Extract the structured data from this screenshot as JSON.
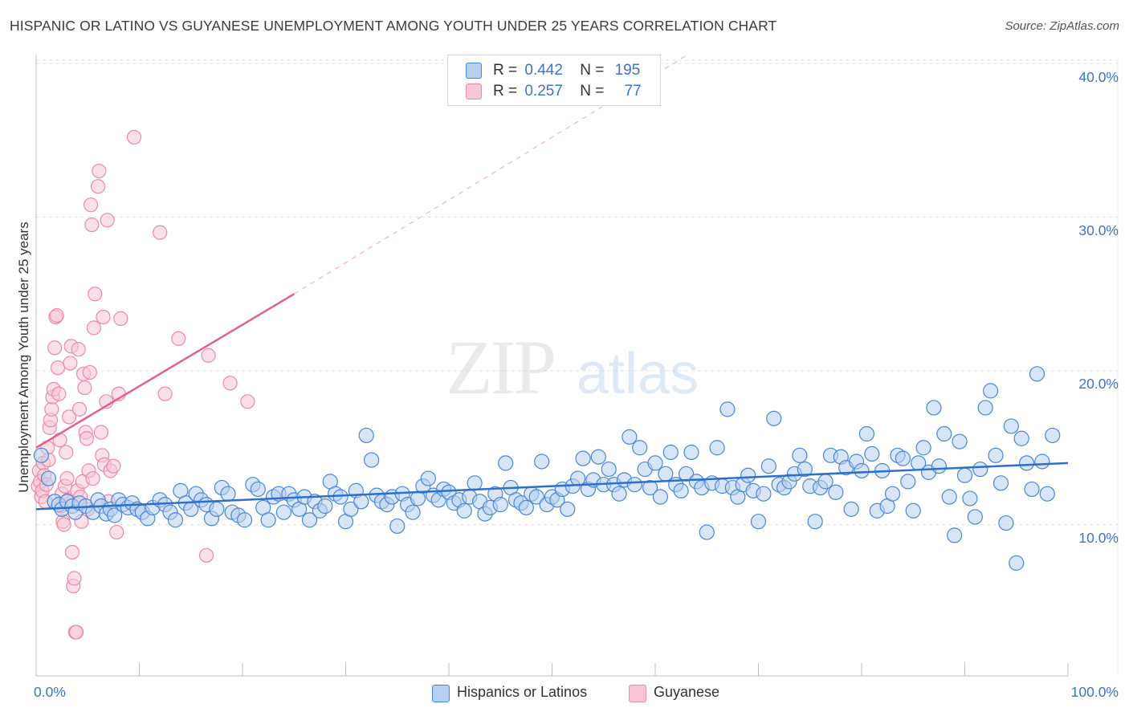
{
  "title": "HISPANIC OR LATINO VS GUYANESE UNEMPLOYMENT AMONG YOUTH UNDER 25 YEARS CORRELATION CHART",
  "source": "Source: ZipAtlas.com",
  "watermark": {
    "zip": "ZIP",
    "atlas": "atlas"
  },
  "legend": {
    "r_label": "R =",
    "n_label": "N =",
    "series1": {
      "r": "0.442",
      "n": "195"
    },
    "series2": {
      "r": "0.257",
      "n": "77"
    }
  },
  "colors": {
    "blue_fill": "#b8d0f0",
    "blue_stroke": "#4a86d6",
    "blue_line": "#2e6fcc",
    "pink_fill": "#f8c6d6",
    "pink_stroke": "#e88aaa",
    "pink_line": "#e0628e"
  },
  "chart_data": {
    "type": "scatter",
    "title": "HISPANIC OR LATINO VS GUYANESE UNEMPLOYMENT AMONG YOUTH UNDER 25 YEARS CORRELATION CHART",
    "xlabel": "",
    "ylabel": "Unemployment Among Youth under 25 years",
    "xlim": [
      0,
      100
    ],
    "ylim": [
      0,
      41.5
    ],
    "x_tick_labels": [
      "0.0%",
      "100.0%"
    ],
    "y_ticks": [
      10,
      20,
      30,
      40
    ],
    "y_tick_labels": [
      "10.0%",
      "20.0%",
      "30.0%",
      "40.0%"
    ],
    "grid": true,
    "legend_position": "top-center",
    "series": [
      {
        "name": "Hispanics or Latinos",
        "color": "#4a86d6",
        "trend": {
          "x": [
            0,
            100
          ],
          "y": [
            11.0,
            14.0
          ]
        },
        "points": [
          [
            0.5,
            14.5
          ],
          [
            1.2,
            13.0
          ],
          [
            1.8,
            11.5
          ],
          [
            2.2,
            11.3
          ],
          [
            2.5,
            11.0
          ],
          [
            3.0,
            11.5
          ],
          [
            3.5,
            11.2
          ],
          [
            3.8,
            10.8
          ],
          [
            4.2,
            11.4
          ],
          [
            4.8,
            11.2
          ],
          [
            5.5,
            10.8
          ],
          [
            6.0,
            11.6
          ],
          [
            6.3,
            11.2
          ],
          [
            6.8,
            10.7
          ],
          [
            7.2,
            11.0
          ],
          [
            7.6,
            10.6
          ],
          [
            8.0,
            11.6
          ],
          [
            8.4,
            11.3
          ],
          [
            8.9,
            11.1
          ],
          [
            9.3,
            11.4
          ],
          [
            9.8,
            11.0
          ],
          [
            10.3,
            10.8
          ],
          [
            10.8,
            10.4
          ],
          [
            11.3,
            11.1
          ],
          [
            12.0,
            11.6
          ],
          [
            12.5,
            11.3
          ],
          [
            13.0,
            10.8
          ],
          [
            13.5,
            10.3
          ],
          [
            14.0,
            12.2
          ],
          [
            14.5,
            11.4
          ],
          [
            15.0,
            11.0
          ],
          [
            15.5,
            12.0
          ],
          [
            16.0,
            11.6
          ],
          [
            16.5,
            11.3
          ],
          [
            17.0,
            10.4
          ],
          [
            17.5,
            11.0
          ],
          [
            18.0,
            12.4
          ],
          [
            18.6,
            12.0
          ],
          [
            19.0,
            10.8
          ],
          [
            19.6,
            10.6
          ],
          [
            20.2,
            10.3
          ],
          [
            21.0,
            12.6
          ],
          [
            21.5,
            12.3
          ],
          [
            22.0,
            11.1
          ],
          [
            22.5,
            10.3
          ],
          [
            23.0,
            11.8
          ],
          [
            23.5,
            12.0
          ],
          [
            24.0,
            10.8
          ],
          [
            24.5,
            12.0
          ],
          [
            25.0,
            11.6
          ],
          [
            25.5,
            11.0
          ],
          [
            26.0,
            11.8
          ],
          [
            26.5,
            10.3
          ],
          [
            27.0,
            11.5
          ],
          [
            27.5,
            10.9
          ],
          [
            28.0,
            11.2
          ],
          [
            28.5,
            12.8
          ],
          [
            29.0,
            12.0
          ],
          [
            29.5,
            11.8
          ],
          [
            30.0,
            10.2
          ],
          [
            30.5,
            11.0
          ],
          [
            31.0,
            12.2
          ],
          [
            31.5,
            11.5
          ],
          [
            32.0,
            15.8
          ],
          [
            32.5,
            14.2
          ],
          [
            33.0,
            11.9
          ],
          [
            33.5,
            11.5
          ],
          [
            34.0,
            11.3
          ],
          [
            34.5,
            11.8
          ],
          [
            35.0,
            9.9
          ],
          [
            35.5,
            12.0
          ],
          [
            36.0,
            11.3
          ],
          [
            36.5,
            10.8
          ],
          [
            37.0,
            11.7
          ],
          [
            37.5,
            12.5
          ],
          [
            38.0,
            13.0
          ],
          [
            38.5,
            11.9
          ],
          [
            39.0,
            11.6
          ],
          [
            39.5,
            12.3
          ],
          [
            40.0,
            12.1
          ],
          [
            40.5,
            11.4
          ],
          [
            41.0,
            11.6
          ],
          [
            41.5,
            10.9
          ],
          [
            42.0,
            11.8
          ],
          [
            42.5,
            12.7
          ],
          [
            43.0,
            11.5
          ],
          [
            43.5,
            10.7
          ],
          [
            44.0,
            11.1
          ],
          [
            44.5,
            12.0
          ],
          [
            45.0,
            11.3
          ],
          [
            45.5,
            14.0
          ],
          [
            46.0,
            12.4
          ],
          [
            46.5,
            11.6
          ],
          [
            47.0,
            11.4
          ],
          [
            47.5,
            11.1
          ],
          [
            48.0,
            12.0
          ],
          [
            48.5,
            11.8
          ],
          [
            49.0,
            14.1
          ],
          [
            49.5,
            11.3
          ],
          [
            50.0,
            11.8
          ],
          [
            50.5,
            11.6
          ],
          [
            51.0,
            12.3
          ],
          [
            51.5,
            11.0
          ],
          [
            52.0,
            12.5
          ],
          [
            52.5,
            13.0
          ],
          [
            53.0,
            14.3
          ],
          [
            53.5,
            12.3
          ],
          [
            54.0,
            12.9
          ],
          [
            54.5,
            14.4
          ],
          [
            55.0,
            12.6
          ],
          [
            55.5,
            13.6
          ],
          [
            56.0,
            12.6
          ],
          [
            56.5,
            12.0
          ],
          [
            57.0,
            12.9
          ],
          [
            57.5,
            15.7
          ],
          [
            58.0,
            12.6
          ],
          [
            58.5,
            15.0
          ],
          [
            59.0,
            13.6
          ],
          [
            59.5,
            12.4
          ],
          [
            60.0,
            14.0
          ],
          [
            60.5,
            11.8
          ],
          [
            61.0,
            13.3
          ],
          [
            61.5,
            14.7
          ],
          [
            62.0,
            12.6
          ],
          [
            62.5,
            12.2
          ],
          [
            63.0,
            13.3
          ],
          [
            63.5,
            14.7
          ],
          [
            64.0,
            12.8
          ],
          [
            64.5,
            12.4
          ],
          [
            65.0,
            9.5
          ],
          [
            65.5,
            12.7
          ],
          [
            66.0,
            15.0
          ],
          [
            66.5,
            12.5
          ],
          [
            67.0,
            17.5
          ],
          [
            67.5,
            12.4
          ],
          [
            68.0,
            11.8
          ],
          [
            68.5,
            12.6
          ],
          [
            69.0,
            13.2
          ],
          [
            69.5,
            12.2
          ],
          [
            70.0,
            10.2
          ],
          [
            70.5,
            12.0
          ],
          [
            71.0,
            13.8
          ],
          [
            71.5,
            16.9
          ],
          [
            72.0,
            12.6
          ],
          [
            72.5,
            12.4
          ],
          [
            73.0,
            12.8
          ],
          [
            73.5,
            13.3
          ],
          [
            74.0,
            14.5
          ],
          [
            74.5,
            13.6
          ],
          [
            75.0,
            12.5
          ],
          [
            75.5,
            10.2
          ],
          [
            76.0,
            12.4
          ],
          [
            76.5,
            12.8
          ],
          [
            77.0,
            14.5
          ],
          [
            77.5,
            12.1
          ],
          [
            78.0,
            14.4
          ],
          [
            78.5,
            13.7
          ],
          [
            79.0,
            11.0
          ],
          [
            79.5,
            14.1
          ],
          [
            80.0,
            13.5
          ],
          [
            80.5,
            15.9
          ],
          [
            81.0,
            14.6
          ],
          [
            81.5,
            10.9
          ],
          [
            82.0,
            13.5
          ],
          [
            82.5,
            11.2
          ],
          [
            83.0,
            12.0
          ],
          [
            83.5,
            14.5
          ],
          [
            84.0,
            14.3
          ],
          [
            84.5,
            12.8
          ],
          [
            85.0,
            10.9
          ],
          [
            85.5,
            14.0
          ],
          [
            86.0,
            15.0
          ],
          [
            86.5,
            13.4
          ],
          [
            87.0,
            17.6
          ],
          [
            87.5,
            13.8
          ],
          [
            88.0,
            15.9
          ],
          [
            88.5,
            11.8
          ],
          [
            89.0,
            9.3
          ],
          [
            89.5,
            15.4
          ],
          [
            90.0,
            13.2
          ],
          [
            90.5,
            11.7
          ],
          [
            91.0,
            10.5
          ],
          [
            91.5,
            13.6
          ],
          [
            92.0,
            17.6
          ],
          [
            92.5,
            18.7
          ],
          [
            93.0,
            14.5
          ],
          [
            93.5,
            12.7
          ],
          [
            94.0,
            10.1
          ],
          [
            94.5,
            16.4
          ],
          [
            95.0,
            7.5
          ],
          [
            95.5,
            15.6
          ],
          [
            96.0,
            14.0
          ],
          [
            96.5,
            12.3
          ],
          [
            97.0,
            19.8
          ],
          [
            97.5,
            14.1
          ],
          [
            98.0,
            12.0
          ],
          [
            98.5,
            15.8
          ]
        ]
      },
      {
        "name": "Guyanese",
        "color": "#e88aaa",
        "trend": {
          "x": [
            0,
            25
          ],
          "y": [
            15.0,
            25.0
          ]
        },
        "trend_dashed": {
          "x": [
            25,
            63
          ],
          "y": [
            25.0,
            40.5
          ]
        },
        "points": [
          [
            0.2,
            12.5
          ],
          [
            0.3,
            13.5
          ],
          [
            0.4,
            12.8
          ],
          [
            0.5,
            11.8
          ],
          [
            0.6,
            12.2
          ],
          [
            0.7,
            14.0
          ],
          [
            0.8,
            13.2
          ],
          [
            0.9,
            11.5
          ],
          [
            1.0,
            12.6
          ],
          [
            1.1,
            15.0
          ],
          [
            1.2,
            14.2
          ],
          [
            1.3,
            16.3
          ],
          [
            1.4,
            16.8
          ],
          [
            1.5,
            17.5
          ],
          [
            1.6,
            18.3
          ],
          [
            1.7,
            18.8
          ],
          [
            1.8,
            21.5
          ],
          [
            1.9,
            23.5
          ],
          [
            2.0,
            23.6
          ],
          [
            2.1,
            20.2
          ],
          [
            2.2,
            18.5
          ],
          [
            2.3,
            15.5
          ],
          [
            2.4,
            11.2
          ],
          [
            2.5,
            12.0
          ],
          [
            2.6,
            10.2
          ],
          [
            2.7,
            10.0
          ],
          [
            2.8,
            12.5
          ],
          [
            2.9,
            14.7
          ],
          [
            3.0,
            13.0
          ],
          [
            3.1,
            11.6
          ],
          [
            3.2,
            17.0
          ],
          [
            3.3,
            20.5
          ],
          [
            3.4,
            21.6
          ],
          [
            3.5,
            8.2
          ],
          [
            3.6,
            6.0
          ],
          [
            3.7,
            6.5
          ],
          [
            3.8,
            3.0
          ],
          [
            3.9,
            3.0
          ],
          [
            4.0,
            12.2
          ],
          [
            4.1,
            21.4
          ],
          [
            4.2,
            17.5
          ],
          [
            4.3,
            11.8
          ],
          [
            4.4,
            10.2
          ],
          [
            4.5,
            12.8
          ],
          [
            4.6,
            19.8
          ],
          [
            4.7,
            18.9
          ],
          [
            4.8,
            16.0
          ],
          [
            4.9,
            15.6
          ],
          [
            5.0,
            11.0
          ],
          [
            5.1,
            13.5
          ],
          [
            5.2,
            19.9
          ],
          [
            5.3,
            30.8
          ],
          [
            5.4,
            29.5
          ],
          [
            5.5,
            13.0
          ],
          [
            5.6,
            22.8
          ],
          [
            5.7,
            25.0
          ],
          [
            6.0,
            32.0
          ],
          [
            6.1,
            33.0
          ],
          [
            6.3,
            16.0
          ],
          [
            6.4,
            14.5
          ],
          [
            6.5,
            23.5
          ],
          [
            6.6,
            13.9
          ],
          [
            6.8,
            18.0
          ],
          [
            6.9,
            29.8
          ],
          [
            7.0,
            11.5
          ],
          [
            7.2,
            13.5
          ],
          [
            7.5,
            13.8
          ],
          [
            7.8,
            9.5
          ],
          [
            8.0,
            18.5
          ],
          [
            8.2,
            23.4
          ],
          [
            9.5,
            35.2
          ],
          [
            12.0,
            29.0
          ],
          [
            12.5,
            18.5
          ],
          [
            13.8,
            22.1
          ],
          [
            16.5,
            8.0
          ],
          [
            16.7,
            21.0
          ],
          [
            18.8,
            19.2
          ],
          [
            20.5,
            18.0
          ]
        ]
      }
    ]
  },
  "bottom_legend": {
    "series1": "Hispanics or Latinos",
    "series2": "Guyanese"
  }
}
